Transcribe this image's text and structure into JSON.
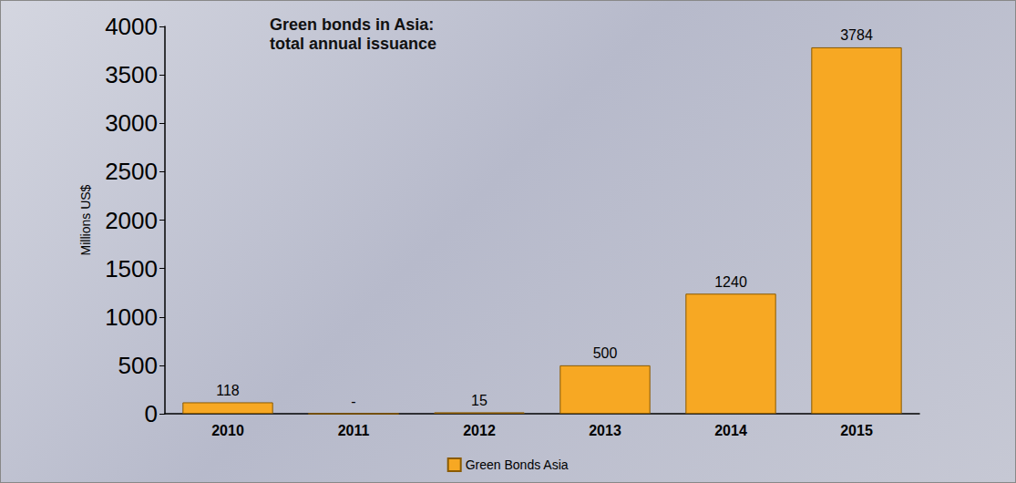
{
  "chart_data": {
    "type": "bar",
    "title": "Green bonds in Asia:\ntotal annual issuance",
    "y_label": "Millions US$",
    "categories": [
      "2010",
      "2011",
      "2012",
      "2013",
      "2014",
      "2015"
    ],
    "series": [
      {
        "name": "Green Bonds Asia",
        "color": "#f7a823",
        "values": [
          118,
          0,
          15,
          500,
          1240,
          3784
        ],
        "value_labels": [
          "118",
          "-",
          "15",
          "500",
          "1240",
          "3784"
        ]
      }
    ],
    "ylim": [
      0,
      4000
    ],
    "yticks": [
      0,
      500,
      1000,
      1500,
      2000,
      2500,
      3000,
      3500,
      4000
    ],
    "grid": false,
    "data_labels": true,
    "legend": "bottom"
  }
}
